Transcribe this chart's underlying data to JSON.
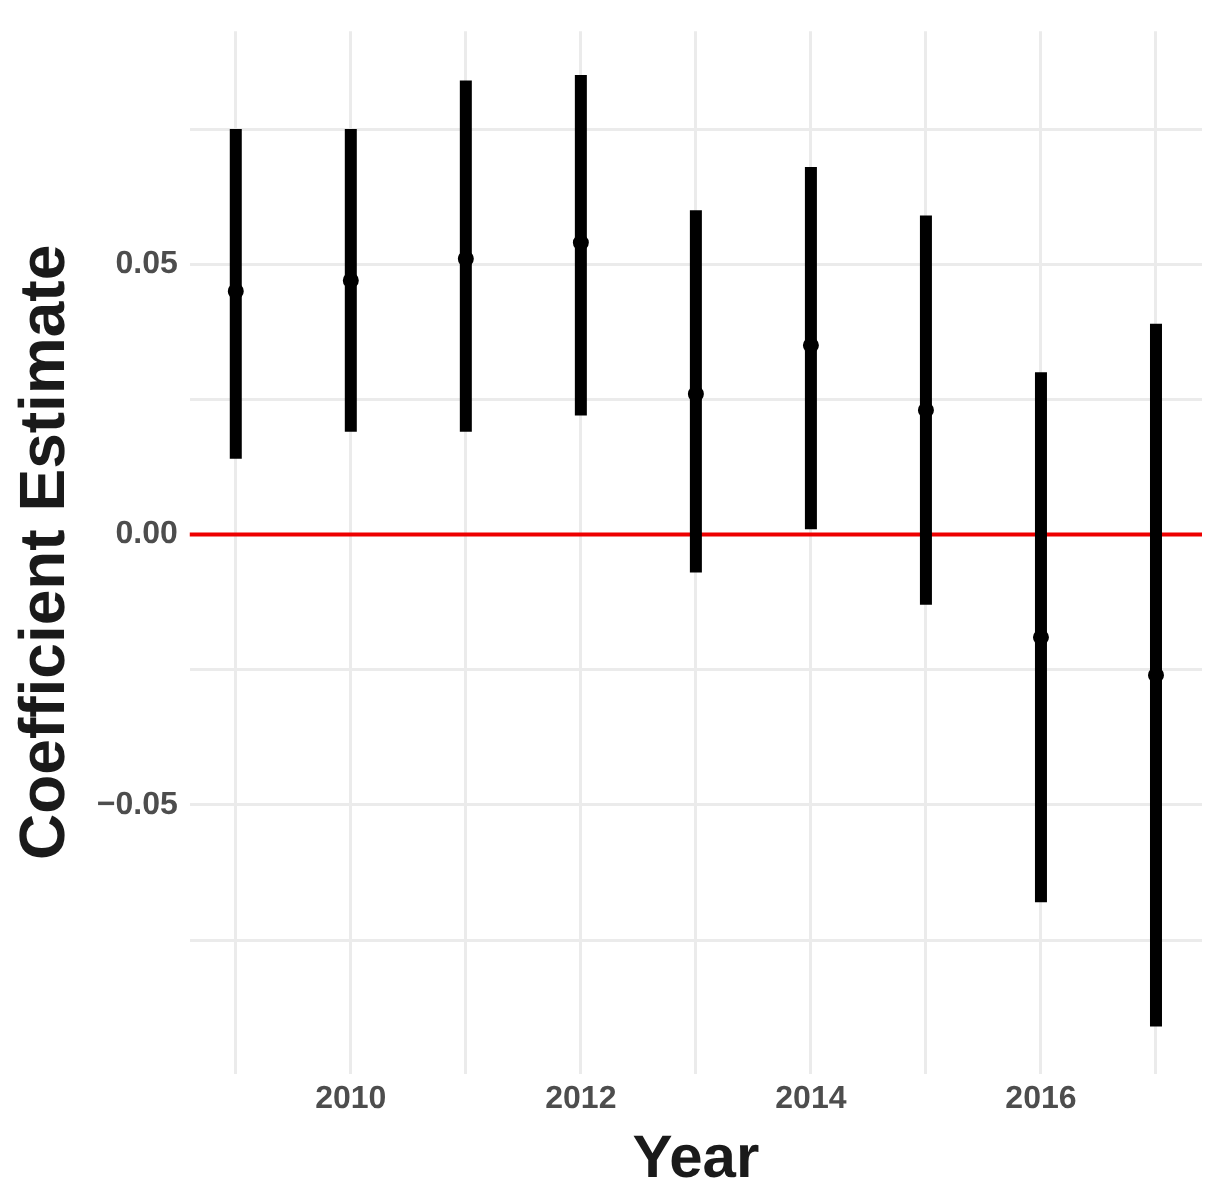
{
  "chart_data": {
    "type": "scatter",
    "xlabel": "Year",
    "ylabel": "Coefficient Estimate",
    "x": [
      2009,
      2010,
      2011,
      2012,
      2013,
      2014,
      2015,
      2016,
      2017
    ],
    "series": [
      {
        "color": "#000000",
        "values": [
          0.045,
          0.047,
          0.051,
          0.054,
          0.026,
          0.035,
          0.023,
          -0.019,
          -0.026
        ],
        "errors": [
          [
            0.014,
            0.075
          ],
          [
            0.019,
            0.075
          ],
          [
            0.019,
            0.084
          ],
          [
            0.022,
            0.085
          ],
          [
            -0.007,
            0.06
          ],
          [
            0.001,
            0.068
          ],
          [
            -0.013,
            0.059
          ],
          [
            -0.068,
            0.03
          ],
          [
            -0.091,
            0.039
          ]
        ]
      }
    ],
    "xlim": [
      2008.6,
      2017.4
    ],
    "xticks": [
      {
        "value": 2009,
        "label": null
      },
      2010,
      {
        "value": 2011,
        "label": null
      },
      2012,
      {
        "value": 2013,
        "label": null
      },
      2014,
      {
        "value": 2015,
        "label": null
      },
      2016,
      {
        "value": 2017,
        "label": null
      }
    ],
    "ylim": [
      -0.0997,
      0.0931
    ],
    "yticks": [
      {
        "value": -0.075,
        "label": null
      },
      {
        "value": -0.05,
        "label": "−0.05"
      },
      {
        "value": -0.025,
        "label": null
      },
      {
        "value": 0,
        "label": "0.00"
      },
      {
        "value": 0.025,
        "label": null
      },
      {
        "value": 0.05,
        "label": "0.05"
      },
      {
        "value": 0.075,
        "label": null
      }
    ],
    "ref_lines": [
      {
        "axis": "y",
        "value": 0,
        "color": "#ee0000"
      }
    ],
    "grid": true,
    "legend": false,
    "marker": "circle"
  }
}
